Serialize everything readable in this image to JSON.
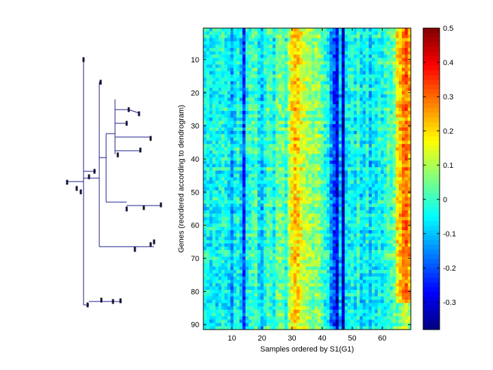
{
  "chart_data": {
    "type": "heatmap",
    "xlabel": "Samples ordered by S1(G1)",
    "ylabel": "Genes (reordered according to dendrogram)",
    "xlim": [
      1,
      69
    ],
    "ylim": [
      1,
      91
    ],
    "xticks": [
      10,
      20,
      30,
      40,
      50,
      60
    ],
    "yticks": [
      10,
      20,
      30,
      40,
      50,
      60,
      70,
      80,
      90
    ],
    "n_samples": 69,
    "n_genes": 91,
    "colorbar": {
      "colormap": "jet",
      "range": [
        -0.38,
        0.5
      ],
      "ticks": [
        0.5,
        0.4,
        0.3,
        0.2,
        0.1,
        0,
        -0.1,
        -0.2,
        -0.3
      ],
      "tick_labels": [
        "0.5",
        "0.4",
        "0.3",
        "0.2",
        "0.1",
        "0",
        "-0.1",
        "-0.2",
        "-0.3"
      ]
    },
    "column_profile": {
      "description": "approximate mean value per sample column (1..69)",
      "values": [
        -0.05,
        -0.04,
        -0.06,
        -0.03,
        -0.05,
        -0.04,
        -0.02,
        -0.03,
        -0.06,
        -0.12,
        -0.05,
        -0.02,
        -0.08,
        -0.22,
        -0.04,
        -0.01,
        0.0,
        0.02,
        -0.06,
        -0.1,
        -0.03,
        0.02,
        0.0,
        -0.05,
        0.04,
        0.05,
        0.03,
        -0.01,
        0.1,
        0.18,
        0.22,
        0.2,
        0.15,
        0.12,
        0.1,
        0.08,
        0.06,
        0.08,
        0.07,
        0.02,
        -0.02,
        -0.04,
        -0.14,
        -0.2,
        -0.28,
        -0.1,
        -0.32,
        -0.06,
        -0.04,
        -0.02,
        -0.06,
        0.0,
        -0.08,
        -0.06,
        -0.02,
        -0.1,
        -0.04,
        -0.06,
        -0.02,
        -0.04,
        -0.02,
        0.02,
        0.0,
        0.05,
        0.18,
        0.22,
        0.28,
        0.3,
        0.25
      ]
    },
    "dendrogram": {
      "orientation": "left",
      "n_leaves": 91,
      "leaf_groups": [
        {
          "genes": [
            1,
            8
          ],
          "merge_height": 0.92
        },
        {
          "genes": [
            9,
            28
          ],
          "merge_height": 0.78
        },
        {
          "genes": [
            29,
            52
          ],
          "merge_height": 0.66
        },
        {
          "genes": [
            53,
            74
          ],
          "merge_height": 0.52
        },
        {
          "genes": [
            75,
            91
          ],
          "merge_height": 0.4
        }
      ]
    }
  }
}
